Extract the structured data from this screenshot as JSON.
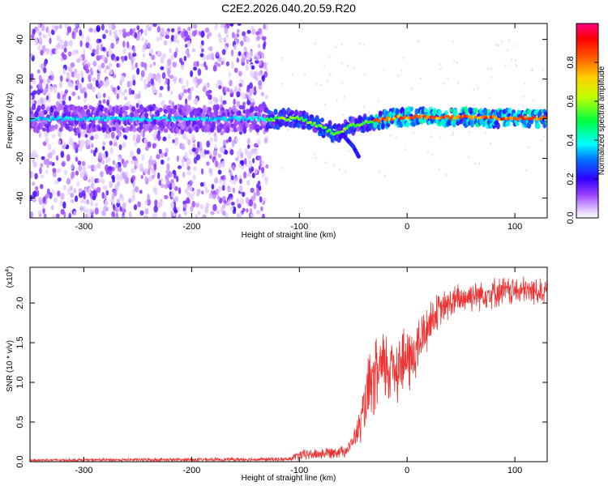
{
  "title": "C2E2.2026.040.20.59.R20",
  "chart_data": [
    {
      "type": "heatmap",
      "title": "C2E2.2026.040.20.59.R20",
      "xlabel": "Height of straight line (km)",
      "ylabel": "Frequency (Hz)",
      "xlim": [
        -350,
        130
      ],
      "ylim": [
        -50,
        48
      ],
      "xticks": [
        -300,
        -200,
        -100,
        0,
        100
      ],
      "xtick_labels": [
        "-300",
        "-200",
        "-100",
        "0",
        "100"
      ],
      "yticks": [
        -40,
        -20,
        0,
        20,
        40
      ],
      "ytick_labels": [
        "-40",
        "-20",
        "0",
        "20",
        "40"
      ],
      "colorbar": {
        "label": "Normalized spectral amplitude",
        "range": [
          0,
          1
        ],
        "ticks": [
          0.0,
          0.2,
          0.4,
          0.6,
          0.8
        ],
        "tick_labels": [
          "0.0",
          "0.2",
          "0.4",
          "0.6",
          "0.8"
        ],
        "colormap": [
          "#ffffff",
          "#c080ff",
          "#6a00ff",
          "#0000ff",
          "#00ffff",
          "#00ff00",
          "#ffff00",
          "#ff8000",
          "#ff0000",
          "#ff0080"
        ]
      },
      "centerline": [
        {
          "x": -350,
          "y": 0
        },
        {
          "x": -130,
          "y": 0
        },
        {
          "x": -100,
          "y": 0
        },
        {
          "x": -80,
          "y": -4
        },
        {
          "x": -65,
          "y": -8
        },
        {
          "x": -55,
          "y": -4
        },
        {
          "x": -40,
          "y": -2
        },
        {
          "x": -20,
          "y": 0
        },
        {
          "x": 0,
          "y": 1
        },
        {
          "x": 130,
          "y": 0
        }
      ],
      "branch": [
        {
          "x": -60,
          "y": -8
        },
        {
          "x": -50,
          "y": -14
        },
        {
          "x": -45,
          "y": -19
        }
      ],
      "noise_region": {
        "x_range": [
          -350,
          -130
        ],
        "y_range": [
          -50,
          48
        ]
      },
      "grid": false
    },
    {
      "type": "line",
      "xlabel": "Height of straight line (km)",
      "ylabel": "SNR (10 * v/v)",
      "y_multiplier": "(x10",
      "y_multiplier_exp": "4",
      "xlim": [
        -350,
        130
      ],
      "ylim": [
        0,
        2.45
      ],
      "xticks": [
        -300,
        -200,
        -100,
        0,
        100
      ],
      "xtick_labels": [
        "-300",
        "-200",
        "-100",
        "0",
        "100"
      ],
      "yticks": [
        0.0,
        0.5,
        1.0,
        1.5,
        2.0
      ],
      "ytick_labels": [
        "0.0",
        "0.5",
        "1.0",
        "1.5",
        "2.0"
      ],
      "series": [
        {
          "color": "#ee3333",
          "envelope": [
            {
              "x": -350,
              "y": 0.02
            },
            {
              "x": -110,
              "y": 0.03
            },
            {
              "x": -100,
              "y": 0.08
            },
            {
              "x": -80,
              "y": 0.1
            },
            {
              "x": -55,
              "y": 0.15
            },
            {
              "x": -45,
              "y": 0.4
            },
            {
              "x": -35,
              "y": 0.9
            },
            {
              "x": -25,
              "y": 1.15
            },
            {
              "x": -15,
              "y": 1.2
            },
            {
              "x": -5,
              "y": 1.25
            },
            {
              "x": 5,
              "y": 1.3
            },
            {
              "x": 15,
              "y": 1.6
            },
            {
              "x": 25,
              "y": 1.85
            },
            {
              "x": 40,
              "y": 2.0
            },
            {
              "x": 60,
              "y": 2.1
            },
            {
              "x": 90,
              "y": 2.15
            },
            {
              "x": 130,
              "y": 2.15
            }
          ],
          "noise_amplitude": [
            {
              "x": -350,
              "y": 0.02
            },
            {
              "x": -110,
              "y": 0.03
            },
            {
              "x": -100,
              "y": 0.08
            },
            {
              "x": -50,
              "y": 0.1
            },
            {
              "x": -35,
              "y": 0.55
            },
            {
              "x": -15,
              "y": 0.6
            },
            {
              "x": 10,
              "y": 0.45
            },
            {
              "x": 30,
              "y": 0.25
            },
            {
              "x": 130,
              "y": 0.2
            }
          ]
        }
      ],
      "grid": false
    }
  ]
}
